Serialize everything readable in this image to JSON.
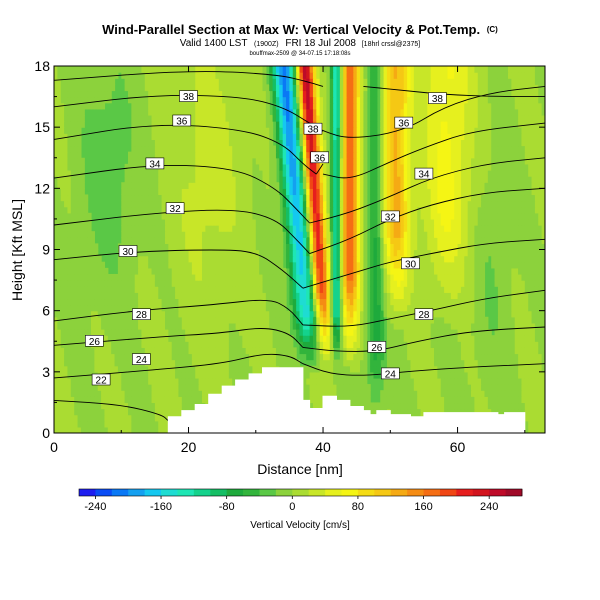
{
  "header": {
    "title": "Wind-Parallel Section at Max W: Vertical Velocity & Pot.Temp.",
    "title_mark": "(C)",
    "subtitle_main": "Valid 1400 LST",
    "subtitle_utc": "(1900Z)",
    "subtitle_date": "FRI 18 Jul 2008",
    "subtitle_suffix": "[18hrl crssl@2375]",
    "subtitle_file": "bouffmax-2509 @ 34-07.15 17:18:08s"
  },
  "chart_data": {
    "type": "heatmap",
    "xlabel": "Distance [nm]",
    "ylabel": "Height [Kft MSL]",
    "xlim": [
      0,
      73
    ],
    "ylim": [
      0,
      18
    ],
    "xticks": [
      "0",
      "20",
      "40",
      "60"
    ],
    "yticks": [
      "0",
      "3",
      "6",
      "9",
      "12",
      "15",
      "18"
    ],
    "colorbar": {
      "label": "Vertical Velocity [cm/s]",
      "ticks": [
        "-240",
        "-160",
        "-80",
        "0",
        "80",
        "160",
        "240"
      ],
      "tick_values": [
        -240,
        -160,
        -80,
        0,
        80,
        160,
        240
      ],
      "range": [
        -260,
        280
      ],
      "step": 20,
      "colors": [
        "#1e1ef0",
        "#0a4cf5",
        "#0a78f5",
        "#14a0f0",
        "#14c8f0",
        "#1edcd2",
        "#1ee6b4",
        "#14d28c",
        "#14be64",
        "#1eaa3c",
        "#32b43c",
        "#5ac846",
        "#8cd23c",
        "#aadc32",
        "#c8e628",
        "#e6f01e",
        "#f5f514",
        "#f5dc14",
        "#f5c814",
        "#f5aa14",
        "#f58c14",
        "#f56e14",
        "#f04614",
        "#e61e1e",
        "#d2141e",
        "#be0a28",
        "#a00a28"
      ]
    },
    "terrain_profile_nm_kft": [
      [
        17,
        0
      ],
      [
        17,
        0.8
      ],
      [
        19,
        0.8
      ],
      [
        19,
        1.1
      ],
      [
        21,
        1.1
      ],
      [
        21,
        1.4
      ],
      [
        23,
        1.4
      ],
      [
        23,
        1.9
      ],
      [
        25,
        1.9
      ],
      [
        25,
        2.3
      ],
      [
        27,
        2.3
      ],
      [
        27,
        2.6
      ],
      [
        29,
        2.6
      ],
      [
        29,
        2.9
      ],
      [
        31,
        2.9
      ],
      [
        31,
        3.2
      ],
      [
        37,
        3.2
      ],
      [
        37,
        1.6
      ],
      [
        38,
        1.6
      ],
      [
        38,
        1.2
      ],
      [
        40,
        1.2
      ],
      [
        40,
        1.8
      ],
      [
        42,
        1.8
      ],
      [
        42,
        1.6
      ],
      [
        44,
        1.6
      ],
      [
        44,
        1.3
      ],
      [
        46,
        1.3
      ],
      [
        46,
        1.1
      ],
      [
        47,
        1.1
      ],
      [
        47,
        0.9
      ],
      [
        48,
        0.9
      ],
      [
        48,
        1.1
      ],
      [
        50,
        1.1
      ],
      [
        50,
        0.9
      ],
      [
        53,
        0.9
      ],
      [
        53,
        0.8
      ],
      [
        55,
        0.8
      ],
      [
        55,
        1.0
      ],
      [
        66,
        1.0
      ],
      [
        66,
        0.9
      ],
      [
        67,
        0.9
      ],
      [
        67,
        1.0
      ],
      [
        70,
        1.0
      ],
      [
        70,
        0
      ]
    ],
    "theta_contours": [
      {
        "value": 22,
        "points": [
          [
            0,
            1.6
          ],
          [
            10,
            1.4
          ],
          [
            16,
            0.9
          ],
          [
            17,
            0.6
          ]
        ],
        "label_at": [
          7,
          2.6
        ]
      },
      {
        "value": 24,
        "points": [
          [
            0,
            2.7
          ],
          [
            15,
            3.1
          ],
          [
            25,
            3.4
          ],
          [
            31,
            3.9
          ],
          [
            35,
            3.8
          ],
          [
            37,
            3.4
          ]
        ],
        "label_at": [
          13,
          3.6
        ]
      },
      {
        "value": 26,
        "points": [
          [
            0,
            4.3
          ],
          [
            15,
            4.7
          ],
          [
            25,
            4.9
          ],
          [
            31,
            5.2
          ],
          [
            35,
            4.9
          ],
          [
            37,
            4.2
          ]
        ],
        "label_at": [
          6,
          4.5
        ]
      },
      {
        "value": 28,
        "points": [
          [
            0,
            5.5
          ],
          [
            12,
            6.0
          ],
          [
            24,
            6.3
          ],
          [
            32,
            6.6
          ],
          [
            35,
            6.1
          ],
          [
            37,
            5.3
          ]
        ],
        "label_at": [
          13,
          5.8
        ]
      },
      {
        "value": 30,
        "points": [
          [
            0,
            8.5
          ],
          [
            12,
            8.9
          ],
          [
            24,
            9.0
          ],
          [
            30,
            8.9
          ],
          [
            34,
            8.0
          ],
          [
            37,
            7.1
          ]
        ],
        "label_at": [
          11,
          8.9
        ]
      },
      {
        "value": 32,
        "points": [
          [
            0,
            10.2
          ],
          [
            15,
            10.8
          ],
          [
            27,
            11.0
          ],
          [
            33,
            10.5
          ],
          [
            36,
            9.5
          ],
          [
            38,
            8.8
          ]
        ],
        "label_at": [
          18,
          11.0
        ]
      },
      {
        "value": 34,
        "points": [
          [
            0,
            12.5
          ],
          [
            15,
            13.2
          ],
          [
            27,
            13.0
          ],
          [
            33,
            12.0
          ],
          [
            36,
            11.0
          ],
          [
            38,
            10.3
          ]
        ],
        "label_at": [
          15,
          13.2
        ]
      },
      {
        "value": 36,
        "points": [
          [
            0,
            14.4
          ],
          [
            15,
            15.2
          ],
          [
            28,
            14.9
          ],
          [
            34,
            14.2
          ],
          [
            37,
            13.2
          ],
          [
            39,
            12.7
          ]
        ],
        "label_at": [
          19,
          15.3
        ]
      },
      {
        "value": 38,
        "points": [
          [
            0,
            16.0
          ],
          [
            15,
            16.6
          ],
          [
            28,
            16.5
          ],
          [
            34,
            16.0
          ],
          [
            38,
            15.2
          ],
          [
            40,
            14.8
          ]
        ],
        "label_at": [
          20,
          16.5
        ]
      },
      {
        "value": 40,
        "points": [
          [
            0,
            17.3
          ],
          [
            20,
            17.8
          ],
          [
            33,
            17.6
          ],
          [
            38,
            17.2
          ],
          [
            40,
            17.0
          ]
        ],
        "label_at": null
      },
      {
        "value": 38,
        "points": [
          [
            38,
            15.2
          ],
          [
            40,
            14.8
          ],
          [
            44,
            14.4
          ],
          [
            52,
            14.8
          ],
          [
            58,
            16.0
          ],
          [
            65,
            16.7
          ],
          [
            73,
            17.0
          ]
        ],
        "label_at": [
          38.5,
          14.9
        ]
      },
      {
        "value": 38,
        "points": [
          [
            46,
            17.0
          ],
          [
            52,
            16.8
          ],
          [
            58,
            16.6
          ],
          [
            66,
            16.5
          ],
          [
            73,
            16.5
          ]
        ],
        "label_at": [
          57,
          16.4
        ]
      },
      {
        "value": 36,
        "points": [
          [
            40,
            12.7
          ],
          [
            44,
            12.4
          ],
          [
            50,
            13.3
          ],
          [
            55,
            14.0
          ],
          [
            62,
            14.8
          ],
          [
            73,
            15.2
          ]
        ],
        "label_at": [
          52,
          15.2
        ]
      },
      {
        "value": 36,
        "points": [
          [
            39,
            12.7
          ],
          [
            40,
            13.2
          ]
        ],
        "label_at": [
          39.5,
          13.5
        ]
      },
      {
        "value": 34,
        "points": [
          [
            38,
            10.3
          ],
          [
            44,
            10.8
          ],
          [
            50,
            11.6
          ],
          [
            56,
            12.5
          ],
          [
            64,
            13.2
          ],
          [
            73,
            13.5
          ]
        ],
        "label_at": [
          55,
          12.7
        ]
      },
      {
        "value": 32,
        "points": [
          [
            38,
            8.8
          ],
          [
            44,
            9.5
          ],
          [
            50,
            10.5
          ],
          [
            56,
            11.2
          ],
          [
            64,
            11.8
          ],
          [
            73,
            12.0
          ]
        ],
        "label_at": [
          50,
          10.6
        ]
      },
      {
        "value": 30,
        "points": [
          [
            37,
            7.1
          ],
          [
            44,
            7.8
          ],
          [
            50,
            8.4
          ],
          [
            56,
            8.8
          ],
          [
            64,
            9.3
          ],
          [
            73,
            9.5
          ]
        ],
        "label_at": [
          53,
          8.3
        ]
      },
      {
        "value": 28,
        "points": [
          [
            37,
            5.3
          ],
          [
            44,
            5.2
          ],
          [
            50,
            5.6
          ],
          [
            56,
            6.0
          ],
          [
            64,
            6.6
          ],
          [
            73,
            7.0
          ]
        ],
        "label_at": [
          55,
          5.8
        ]
      },
      {
        "value": 26,
        "points": [
          [
            37,
            4.2
          ],
          [
            42,
            4.0
          ],
          [
            48,
            4.0
          ],
          [
            54,
            4.5
          ],
          [
            62,
            5.0
          ],
          [
            73,
            5.2
          ]
        ],
        "label_at": [
          48,
          4.2
        ]
      },
      {
        "value": 24,
        "points": [
          [
            37,
            3.4
          ],
          [
            41,
            2.9
          ],
          [
            46,
            2.8
          ],
          [
            52,
            3.0
          ],
          [
            60,
            3.2
          ],
          [
            73,
            3.4
          ]
        ],
        "label_at": [
          50,
          2.9
        ]
      }
    ]
  }
}
